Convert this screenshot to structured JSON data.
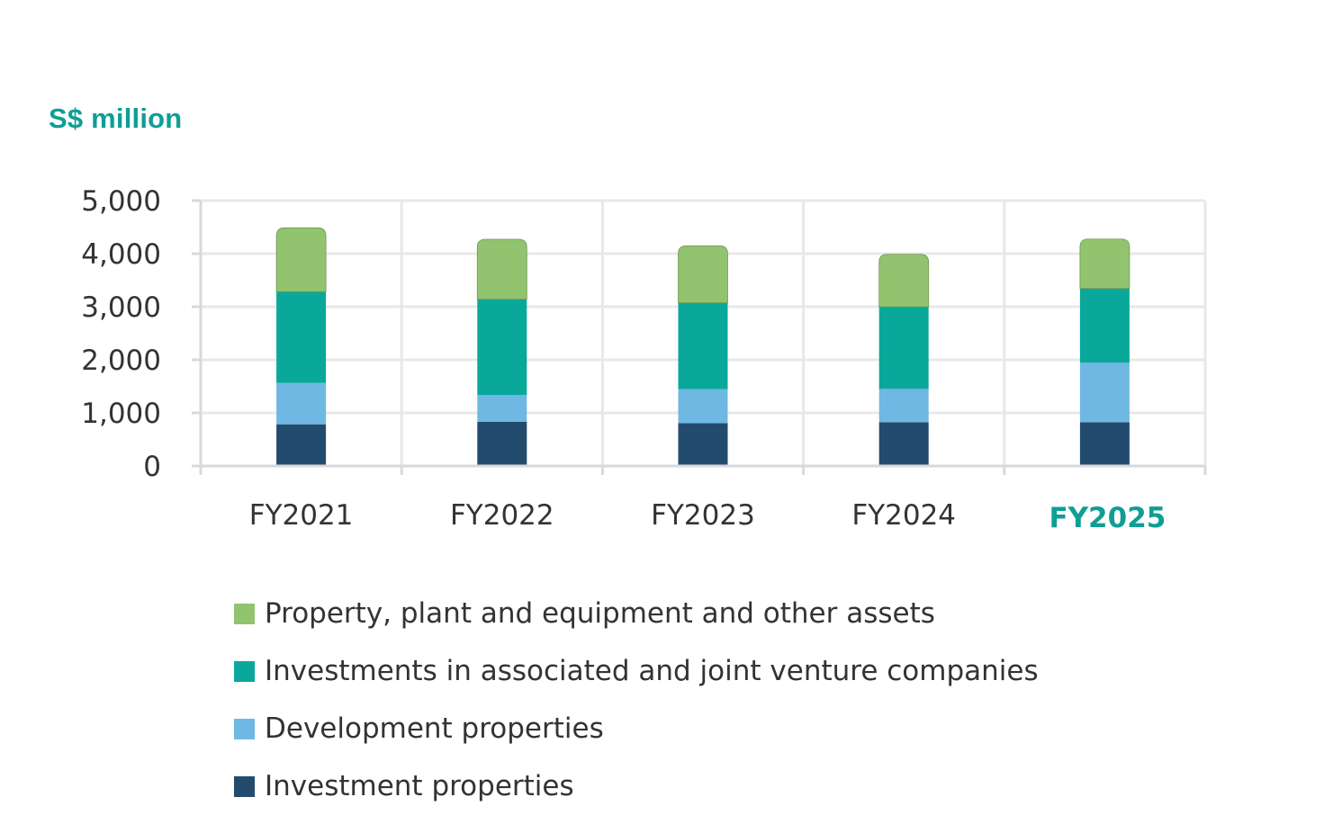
{
  "chart_data": {
    "type": "bar",
    "stacked": true,
    "title": "",
    "ylabel": "S$ million",
    "xlabel": "",
    "categories": [
      "FY2021",
      "FY2022",
      "FY2023",
      "FY2024",
      "FY2025"
    ],
    "highlight_category": "FY2025",
    "ylim": [
      0,
      5000
    ],
    "yticks": [
      0,
      1000,
      2000,
      3000,
      4000,
      5000
    ],
    "ytick_labels": [
      "0",
      "1,000",
      "2,000",
      "3,000",
      "4,000",
      "5,000"
    ],
    "grid": true,
    "legend_position": "bottom",
    "series": [
      {
        "name": "Investment properties",
        "color": "#234b6e",
        "values": [
          785,
          831,
          808,
          825,
          825
        ]
      },
      {
        "name": "Development properties",
        "color": "#6fb8e3",
        "values": [
          779,
          508,
          638,
          627,
          1119
        ]
      },
      {
        "name": "Investments in associated and joint venture companies",
        "color": "#0aa89a",
        "values": [
          1719,
          1802,
          1627,
          1548,
          1400
        ]
      },
      {
        "name": "Property, plant and equipment and other assets",
        "color": "#92c36e",
        "values": [
          1203,
          1130,
          1074,
          988,
          932
        ]
      }
    ],
    "legend_order": [
      "Property, plant and equipment and other assets",
      "Investments in associated and joint venture companies",
      "Development properties",
      "Investment properties"
    ]
  },
  "colors": {
    "accent": "#0e9e94",
    "text": "#333333",
    "grid": "#e8e8e8",
    "axis": "#d9d9d9"
  }
}
